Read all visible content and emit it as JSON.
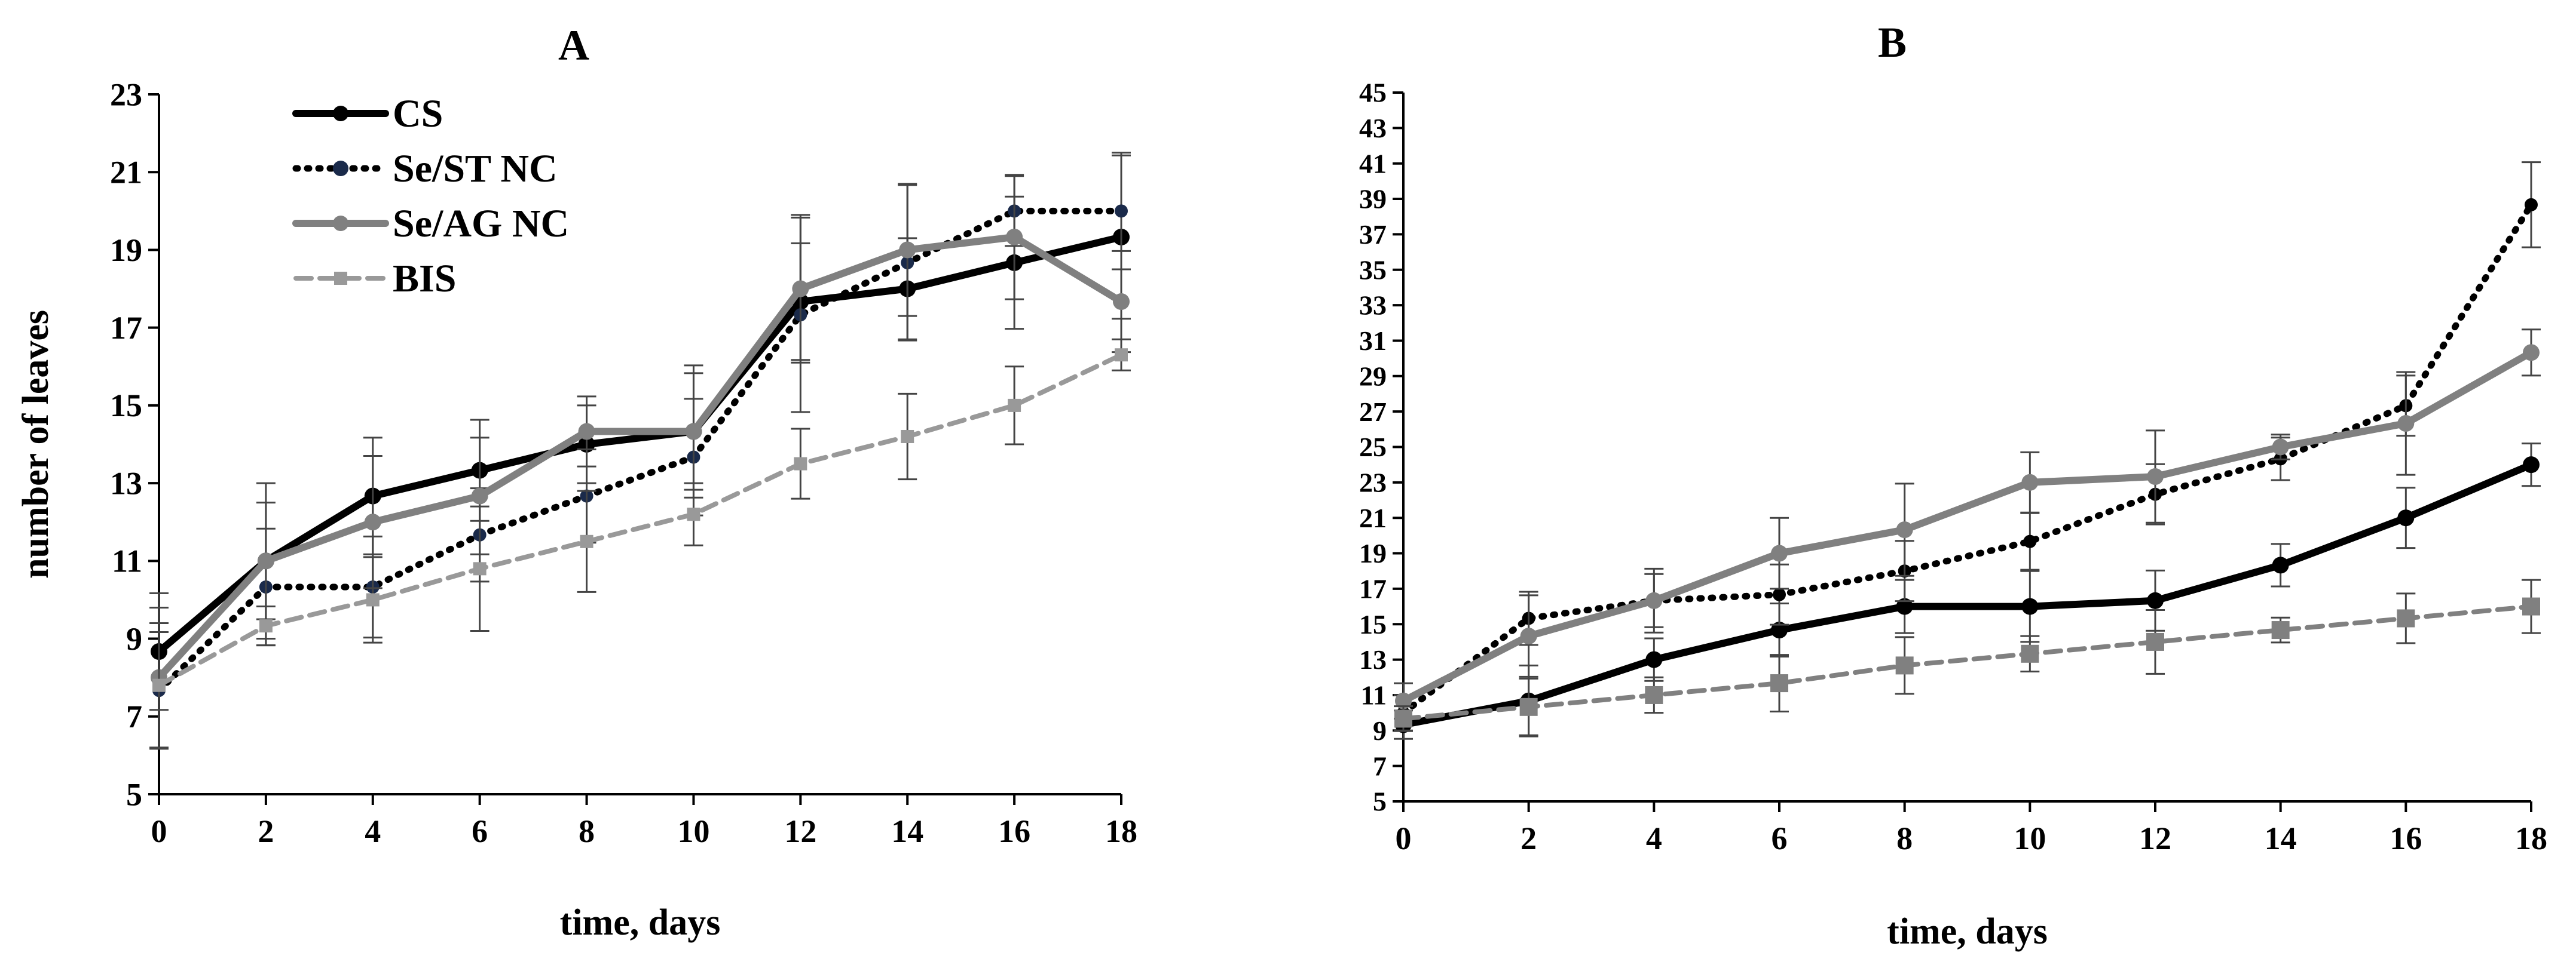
{
  "chart_data": [
    {
      "type": "line",
      "title": "A",
      "xlabel": "time, days",
      "ylabel": "number of leaves",
      "x": [
        0,
        2,
        4,
        6,
        8,
        10,
        12,
        14,
        16,
        18
      ],
      "xlim": [
        0,
        18
      ],
      "ylim": [
        5,
        23
      ],
      "yticks": [
        5,
        7,
        9,
        11,
        13,
        15,
        17,
        19,
        21,
        23
      ],
      "grid": false,
      "legend": "top-left",
      "series": [
        {
          "name": "CS",
          "color": "#000000",
          "style": "solid",
          "marker": "circle",
          "values": [
            8.67,
            11.0,
            12.67,
            13.33,
            14.0,
            14.33,
            17.67,
            18.0,
            18.67,
            19.33
          ],
          "errors": [
            1.5,
            1.5,
            1.5,
            1.3,
            1.0,
            1.5,
            1.5,
            1.3,
            1.7,
            2.1
          ]
        },
        {
          "name": "Se/ST NC",
          "color": "#000000",
          "style": "dotted",
          "marker": "circle",
          "values": [
            7.67,
            10.33,
            10.33,
            11.67,
            12.67,
            13.67,
            17.33,
            18.67,
            20.0,
            20.0
          ],
          "errors": [
            1.5,
            1.5,
            1.3,
            1.2,
            1.2,
            1.5,
            2.5,
            2.0,
            0.9,
            1.5
          ]
        },
        {
          "name": "Se/AG NC",
          "color": "#808080",
          "style": "solid",
          "marker": "circle",
          "values": [
            8.0,
            11.0,
            12.0,
            12.67,
            14.33,
            14.33,
            18.0,
            19.0,
            19.33,
            17.67
          ],
          "errors": [
            1.8,
            2.0,
            1.7,
            1.5,
            0.9,
            1.7,
            1.9,
            1.7,
            1.6,
            1.3
          ]
        },
        {
          "name": "BIS",
          "color": "#999999",
          "style": "dashed",
          "marker": "square",
          "values": [
            7.8,
            9.33,
            10.0,
            10.8,
            11.5,
            12.2,
            13.5,
            14.2,
            15.0,
            16.3
          ],
          "errors": [
            1.6,
            0.5,
            1.1,
            1.6,
            1.3,
            0.8,
            0.9,
            1.1,
            1.0,
            0.4
          ]
        }
      ]
    },
    {
      "type": "line",
      "title": "B",
      "xlabel": "time, days",
      "ylabel": "",
      "x": [
        0,
        2,
        4,
        6,
        8,
        10,
        12,
        14,
        16,
        18
      ],
      "xlim": [
        0,
        18
      ],
      "ylim": [
        5,
        45
      ],
      "yticks": [
        5,
        7,
        9,
        11,
        13,
        15,
        17,
        19,
        21,
        23,
        25,
        27,
        29,
        31,
        33,
        35,
        37,
        39,
        41,
        43,
        45
      ],
      "grid": false,
      "legend": "none",
      "series": [
        {
          "name": "CS",
          "color": "#000000",
          "style": "solid",
          "marker": "circle",
          "values": [
            9.33,
            10.67,
            13.0,
            14.67,
            16.0,
            16.0,
            16.33,
            18.33,
            21.0,
            24.0
          ],
          "errors": [
            0.8,
            2.0,
            1.2,
            1.5,
            1.5,
            2.0,
            1.7,
            1.2,
            1.7,
            1.2
          ]
        },
        {
          "name": "Se/ST NC",
          "color": "#000000",
          "style": "dotted",
          "marker": "circle",
          "values": [
            10.0,
            15.33,
            16.33,
            16.67,
            18.0,
            19.67,
            22.33,
            24.33,
            27.33,
            38.67
          ],
          "errors": [
            1.0,
            1.5,
            1.8,
            1.7,
            1.7,
            1.6,
            1.7,
            1.2,
            1.7,
            2.4
          ]
        },
        {
          "name": "Se/AG NC",
          "color": "#808080",
          "style": "solid",
          "marker": "circle",
          "values": [
            10.67,
            14.33,
            16.33,
            19.0,
            20.33,
            23.0,
            23.33,
            25.0,
            26.33,
            30.33
          ],
          "errors": [
            1.0,
            2.3,
            1.5,
            2.0,
            2.6,
            1.7,
            2.6,
            0.7,
            2.9,
            1.3
          ]
        },
        {
          "name": "BIS",
          "color": "#808080",
          "style": "dashed",
          "marker": "square",
          "values": [
            9.67,
            10.33,
            11.0,
            11.67,
            12.67,
            13.33,
            14.0,
            14.67,
            15.33,
            16.0
          ],
          "errors": [
            0.7,
            1.6,
            1.0,
            1.6,
            1.6,
            1.0,
            1.8,
            0.7,
            1.4,
            1.5
          ]
        }
      ]
    }
  ]
}
